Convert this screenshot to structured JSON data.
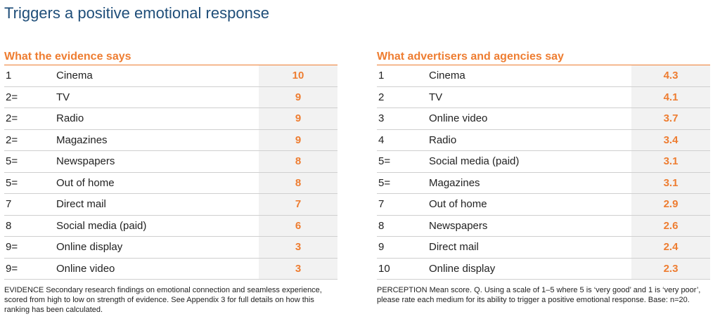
{
  "page": {
    "title": "Triggers a positive emotional response"
  },
  "chart_data": [
    {
      "type": "table",
      "title": "What the evidence says",
      "rows": [
        {
          "rank": "1",
          "medium": "Cinema",
          "score": "10"
        },
        {
          "rank": "2=",
          "medium": "TV",
          "score": "9"
        },
        {
          "rank": "2=",
          "medium": "Radio",
          "score": "9"
        },
        {
          "rank": "2=",
          "medium": "Magazines",
          "score": "9"
        },
        {
          "rank": "5=",
          "medium": "Newspapers",
          "score": "8"
        },
        {
          "rank": "5=",
          "medium": "Out of home",
          "score": "8"
        },
        {
          "rank": "7",
          "medium": "Direct mail",
          "score": "7"
        },
        {
          "rank": "8",
          "medium": "Social media (paid)",
          "score": "6"
        },
        {
          "rank": "9=",
          "medium": "Online display",
          "score": "3"
        },
        {
          "rank": "9=",
          "medium": "Online video",
          "score": "3"
        }
      ],
      "footnote": "EVIDENCE Secondary research findings on emotional connection and seamless experience, scored from high to low on strength of evidence. See Appendix 3 for full details on how this ranking has been calculated."
    },
    {
      "type": "table",
      "title": "What advertisers and agencies say",
      "rows": [
        {
          "rank": "1",
          "medium": "Cinema",
          "score": "4.3"
        },
        {
          "rank": "2",
          "medium": "TV",
          "score": "4.1"
        },
        {
          "rank": "3",
          "medium": "Online video",
          "score": "3.7"
        },
        {
          "rank": "4",
          "medium": "Radio",
          "score": "3.4"
        },
        {
          "rank": "5=",
          "medium": "Social media (paid)",
          "score": "3.1"
        },
        {
          "rank": "5=",
          "medium": "Magazines",
          "score": "3.1"
        },
        {
          "rank": "7",
          "medium": "Out of home",
          "score": "2.9"
        },
        {
          "rank": "8",
          "medium": "Newspapers",
          "score": "2.6"
        },
        {
          "rank": "9",
          "medium": "Direct mail",
          "score": "2.4"
        },
        {
          "rank": "10",
          "medium": "Online display",
          "score": "2.3"
        }
      ],
      "footnote": "PERCEPTION Mean score. Q. Using a scale of 1–5 where 5 is ‘very good’ and 1 is ‘very poor’, please rate each medium for its ability to trigger a positive emotional response. Base: n=20."
    }
  ],
  "colors": {
    "title": "#1f4e79",
    "accent": "#ee7d31",
    "score_bg": "#f2f2f2",
    "row_rule": "#cfcfcf"
  }
}
